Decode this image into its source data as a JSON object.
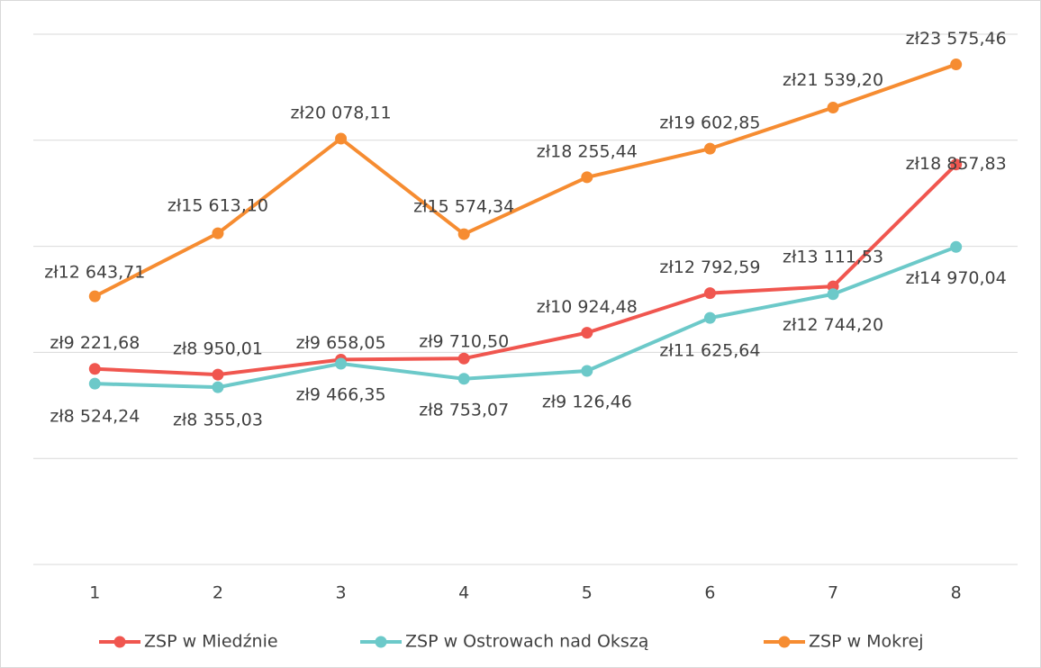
{
  "chart_data": {
    "type": "line",
    "categories": [
      "1",
      "2",
      "3",
      "4",
      "5",
      "6",
      "7",
      "8"
    ],
    "ylim": [
      0,
      25000
    ],
    "yticks": [
      0,
      5000,
      10000,
      15000,
      20000,
      25000
    ],
    "grid": true,
    "series": [
      {
        "name": "ZSP w Miedźnie",
        "color": "#f0564f",
        "values": [
          9221.68,
          8950.01,
          9658.05,
          9710.5,
          10924.48,
          12792.59,
          13111.53,
          18857.83
        ],
        "value_labels": [
          "zł9 221,68",
          "zł8 950,01",
          "zł9 658,05",
          "zł9 710,50",
          "zł10 924,48",
          "zł12 792,59",
          "zł13 111,53",
          "zł18 857,83"
        ]
      },
      {
        "name": "ZSP w Ostrowach nad Okszą",
        "color": "#6cc9c9",
        "values": [
          8524.24,
          8355.03,
          9466.35,
          8753.07,
          9126.46,
          11625.64,
          12744.2,
          14970.04
        ],
        "value_labels": [
          "zł8 524,24",
          "zł8 355,03",
          "zł9 466,35",
          "zł8 753,07",
          "zł9 126,46",
          "zł11 625,64",
          "zł12 744,20",
          "zł14 970,04"
        ]
      },
      {
        "name": "ZSP w Mokrej",
        "color": "#f68c31",
        "values": [
          12643.71,
          15613.1,
          20078.11,
          15574.34,
          18255.44,
          19602.85,
          21539.2,
          23575.46
        ],
        "value_labels": [
          "zł12 643,71",
          "zł15 613,10",
          "zł20 078,11",
          "zł15 574,34",
          "zł18 255,44",
          "zł19 602,85",
          "zł21 539,20",
          "zł23 575,46"
        ]
      }
    ]
  }
}
